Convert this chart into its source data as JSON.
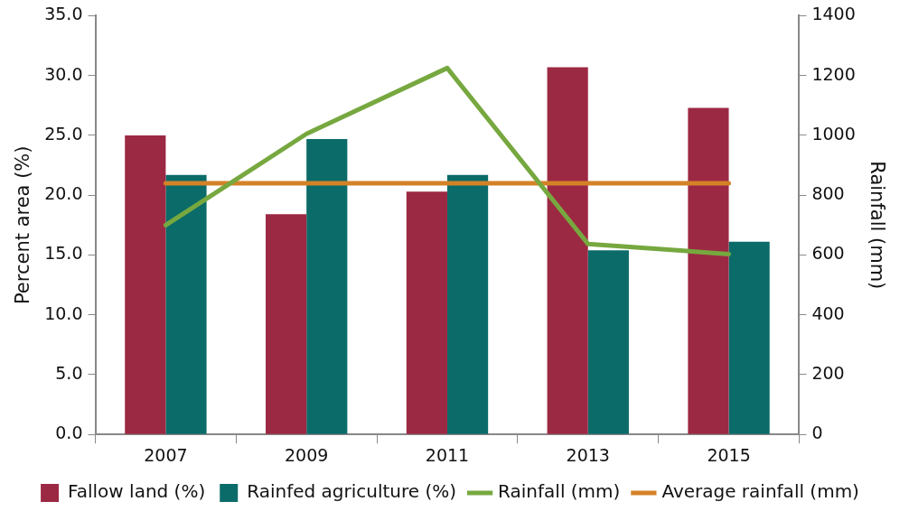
{
  "chart_data": {
    "type": "bar",
    "categories": [
      "2007",
      "2009",
      "2011",
      "2013",
      "2015"
    ],
    "series": [
      {
        "name": "Fallow land (%)",
        "color": "#9c2943",
        "values": [
          25.0,
          18.4,
          20.3,
          30.7,
          27.3
        ]
      },
      {
        "name": "Rainfed agriculture (%)",
        "color": "#0b6b69",
        "values": [
          21.7,
          24.7,
          21.7,
          15.4,
          16.1
        ]
      },
      {
        "name": "Rainfall (mm)",
        "type": "line",
        "axis": "y2",
        "color": "#76a83f",
        "values": [
          700,
          1005,
          1225,
          637,
          603
        ]
      },
      {
        "name": "Average rainfall (mm)",
        "type": "line",
        "axis": "y2",
        "color": "#d48227",
        "values": [
          840,
          840,
          840,
          840,
          840
        ]
      }
    ],
    "ylabel": "Percent area (%)",
    "y2label": "Rainfall (mm)",
    "ylim": [
      0,
      35
    ],
    "yticks": [
      {
        "value": 0,
        "label": "0.0"
      },
      {
        "value": 5,
        "label": "5.0"
      },
      {
        "value": 10,
        "label": "10.0"
      },
      {
        "value": 15,
        "label": "15.0"
      },
      {
        "value": 20,
        "label": "20.0"
      },
      {
        "value": 25,
        "label": "25.0"
      },
      {
        "value": 30,
        "label": "30.0"
      },
      {
        "value": 35,
        "label": "35.0"
      }
    ],
    "y2lim": [
      0,
      1400
    ],
    "y2ticks": [
      0,
      200,
      400,
      600,
      800,
      1000,
      1200,
      1400
    ],
    "legend": "bottom",
    "grid": false,
    "marker": "none"
  }
}
